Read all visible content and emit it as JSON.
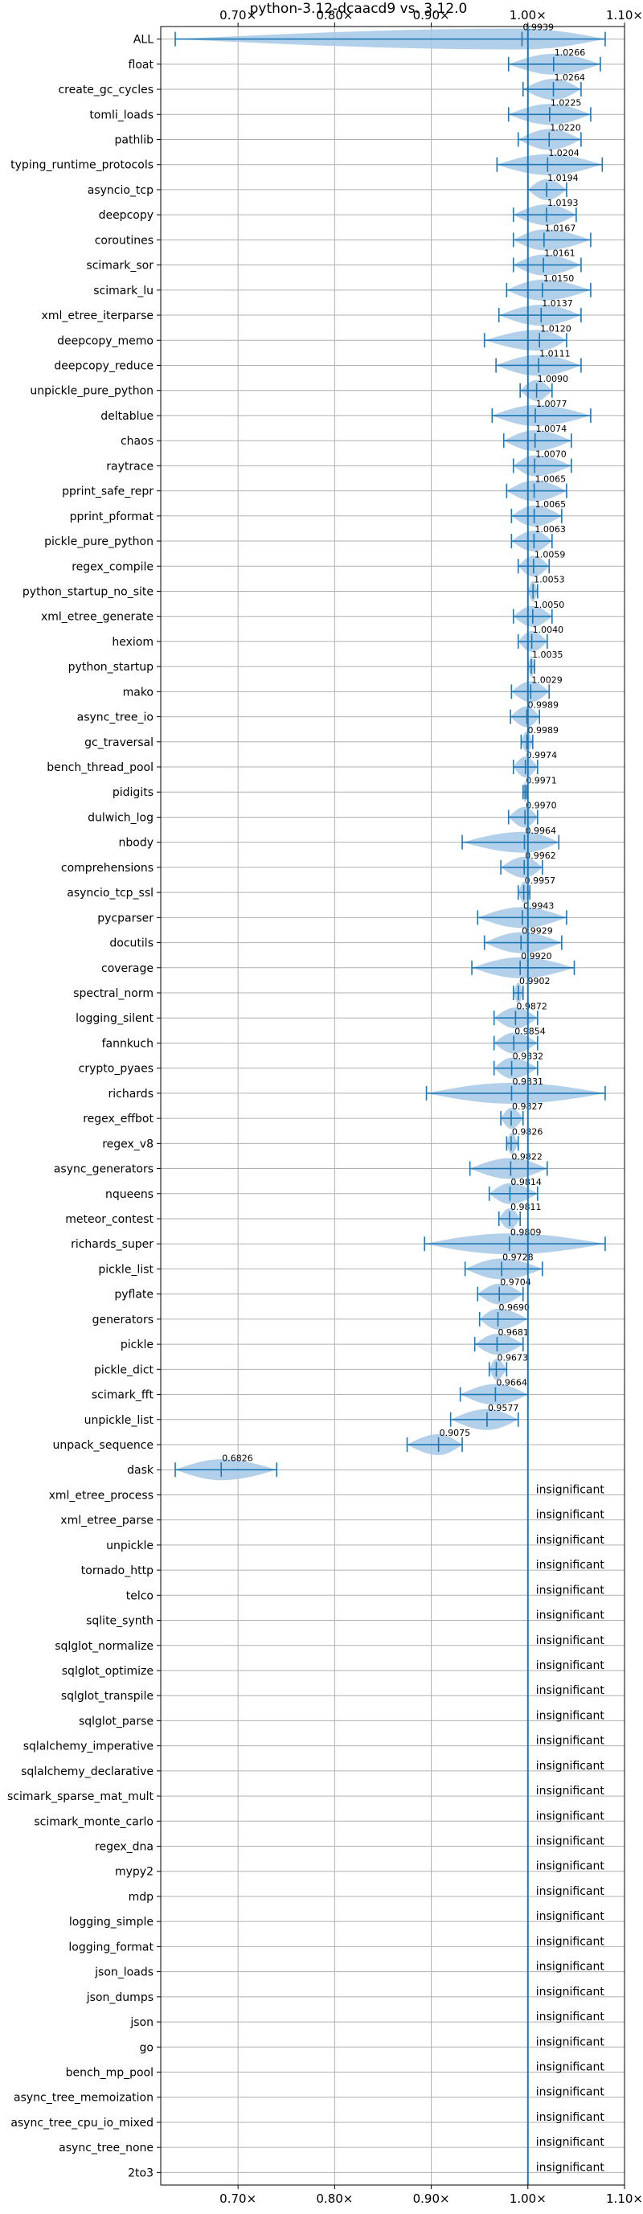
{
  "chart_data": {
    "type": "violin",
    "title": "python-3.12-dcaacd9 vs. 3.12.0",
    "xlim": [
      0.62,
      1.1
    ],
    "xticks": [
      0.7,
      0.8,
      0.9,
      1.0,
      1.1
    ],
    "xtick_labels": [
      "0.70×",
      "0.80×",
      "0.90×",
      "1.00×",
      "1.10×"
    ],
    "reference_line": 1.0,
    "grid": true,
    "colors": {
      "accent": "#1f77b4",
      "violin_fill": "#a6c8e6",
      "grid": "#b0b0b0"
    },
    "insignificant_label": "insignificant",
    "benchmarks": [
      {
        "name": "ALL",
        "mean": 0.9939,
        "min": 0.635,
        "max": 1.08,
        "label": "0.9939"
      },
      {
        "name": "float",
        "mean": 1.0266,
        "min": 0.98,
        "max": 1.075,
        "label": "1.0266"
      },
      {
        "name": "create_gc_cycles",
        "mean": 1.0264,
        "min": 0.995,
        "max": 1.055,
        "label": "1.0264"
      },
      {
        "name": "tomli_loads",
        "mean": 1.0225,
        "min": 0.98,
        "max": 1.065,
        "label": "1.0225"
      },
      {
        "name": "pathlib",
        "mean": 1.022,
        "min": 0.99,
        "max": 1.055,
        "label": "1.0220"
      },
      {
        "name": "typing_runtime_protocols",
        "mean": 1.0204,
        "min": 0.968,
        "max": 1.077,
        "label": "1.0204"
      },
      {
        "name": "asyncio_tcp",
        "mean": 1.0194,
        "min": 1.0,
        "max": 1.04,
        "label": "1.0194"
      },
      {
        "name": "deepcopy",
        "mean": 1.0193,
        "min": 0.985,
        "max": 1.05,
        "label": "1.0193"
      },
      {
        "name": "coroutines",
        "mean": 1.0167,
        "min": 0.985,
        "max": 1.065,
        "label": "1.0167"
      },
      {
        "name": "scimark_sor",
        "mean": 1.0161,
        "min": 0.985,
        "max": 1.055,
        "label": "1.0161"
      },
      {
        "name": "scimark_lu",
        "mean": 1.015,
        "min": 0.978,
        "max": 1.065,
        "label": "1.0150"
      },
      {
        "name": "xml_etree_iterparse",
        "mean": 1.0137,
        "min": 0.97,
        "max": 1.055,
        "label": "1.0137"
      },
      {
        "name": "deepcopy_memo",
        "mean": 1.012,
        "min": 0.955,
        "max": 1.04,
        "label": "1.0120"
      },
      {
        "name": "deepcopy_reduce",
        "mean": 1.0111,
        "min": 0.967,
        "max": 1.055,
        "label": "1.0111"
      },
      {
        "name": "unpickle_pure_python",
        "mean": 1.009,
        "min": 0.992,
        "max": 1.025,
        "label": "1.0090"
      },
      {
        "name": "deltablue",
        "mean": 1.0077,
        "min": 0.963,
        "max": 1.065,
        "label": "1.0077"
      },
      {
        "name": "chaos",
        "mean": 1.0074,
        "min": 0.975,
        "max": 1.045,
        "label": "1.0074"
      },
      {
        "name": "raytrace",
        "mean": 1.007,
        "min": 0.985,
        "max": 1.045,
        "label": "1.0070"
      },
      {
        "name": "pprint_safe_repr",
        "mean": 1.0065,
        "min": 0.978,
        "max": 1.04,
        "label": "1.0065"
      },
      {
        "name": "pprint_pformat",
        "mean": 1.0065,
        "min": 0.983,
        "max": 1.035,
        "label": "1.0065"
      },
      {
        "name": "pickle_pure_python",
        "mean": 1.0063,
        "min": 0.983,
        "max": 1.025,
        "label": "1.0063"
      },
      {
        "name": "regex_compile",
        "mean": 1.0059,
        "min": 0.99,
        "max": 1.022,
        "label": "1.0059"
      },
      {
        "name": "python_startup_no_site",
        "mean": 1.0053,
        "min": 1.0,
        "max": 1.01,
        "label": "1.0053"
      },
      {
        "name": "xml_etree_generate",
        "mean": 1.005,
        "min": 0.985,
        "max": 1.025,
        "label": "1.0050"
      },
      {
        "name": "hexiom",
        "mean": 1.004,
        "min": 0.99,
        "max": 1.02,
        "label": "1.0040"
      },
      {
        "name": "python_startup",
        "mean": 1.0035,
        "min": 1.0,
        "max": 1.007,
        "label": "1.0035"
      },
      {
        "name": "mako",
        "mean": 1.0029,
        "min": 0.983,
        "max": 1.022,
        "label": "1.0029"
      },
      {
        "name": "async_tree_io",
        "mean": 0.9989,
        "min": 0.982,
        "max": 1.012,
        "label": "0.9989"
      },
      {
        "name": "gc_traversal",
        "mean": 0.9989,
        "min": 0.993,
        "max": 1.005,
        "label": "0.9989"
      },
      {
        "name": "bench_thread_pool",
        "mean": 0.9974,
        "min": 0.985,
        "max": 1.01,
        "label": "0.9974"
      },
      {
        "name": "pidigits",
        "mean": 0.9971,
        "min": 0.995,
        "max": 0.999,
        "label": "0.9971"
      },
      {
        "name": "dulwich_log",
        "mean": 0.997,
        "min": 0.98,
        "max": 1.01,
        "label": "0.9970"
      },
      {
        "name": "nbody",
        "mean": 0.9964,
        "min": 0.932,
        "max": 1.032,
        "label": "0.9964"
      },
      {
        "name": "comprehensions",
        "mean": 0.9962,
        "min": 0.972,
        "max": 1.015,
        "label": "0.9962"
      },
      {
        "name": "asyncio_tcp_ssl",
        "mean": 0.9957,
        "min": 0.99,
        "max": 1.002,
        "label": "0.9957"
      },
      {
        "name": "pycparser",
        "mean": 0.9943,
        "min": 0.948,
        "max": 1.04,
        "label": "0.9943"
      },
      {
        "name": "docutils",
        "mean": 0.9929,
        "min": 0.955,
        "max": 1.035,
        "label": "0.9929"
      },
      {
        "name": "coverage",
        "mean": 0.992,
        "min": 0.942,
        "max": 1.048,
        "label": "0.9920"
      },
      {
        "name": "spectral_norm",
        "mean": 0.9902,
        "min": 0.985,
        "max": 0.995,
        "label": "0.9902"
      },
      {
        "name": "logging_silent",
        "mean": 0.9872,
        "min": 0.965,
        "max": 1.01,
        "label": "0.9872"
      },
      {
        "name": "fannkuch",
        "mean": 0.9854,
        "min": 0.965,
        "max": 1.01,
        "label": "0.9854"
      },
      {
        "name": "crypto_pyaes",
        "mean": 0.9832,
        "min": 0.965,
        "max": 1.01,
        "label": "0.9832"
      },
      {
        "name": "richards",
        "mean": 0.9831,
        "min": 0.895,
        "max": 1.08,
        "label": "0.9831"
      },
      {
        "name": "regex_effbot",
        "mean": 0.9827,
        "min": 0.972,
        "max": 0.995,
        "label": "0.9827"
      },
      {
        "name": "regex_v8",
        "mean": 0.9826,
        "min": 0.978,
        "max": 0.99,
        "label": "0.9826"
      },
      {
        "name": "async_generators",
        "mean": 0.9822,
        "min": 0.94,
        "max": 1.02,
        "label": "0.9822"
      },
      {
        "name": "nqueens",
        "mean": 0.9814,
        "min": 0.96,
        "max": 1.01,
        "label": "0.9814"
      },
      {
        "name": "meteor_contest",
        "mean": 0.9811,
        "min": 0.97,
        "max": 0.992,
        "label": "0.9811"
      },
      {
        "name": "richards_super",
        "mean": 0.9809,
        "min": 0.893,
        "max": 1.08,
        "label": "0.9809"
      },
      {
        "name": "pickle_list",
        "mean": 0.9728,
        "min": 0.935,
        "max": 1.015,
        "label": "0.9728"
      },
      {
        "name": "pyflate",
        "mean": 0.9704,
        "min": 0.948,
        "max": 0.995,
        "label": "0.9704"
      },
      {
        "name": "generators",
        "mean": 0.969,
        "min": 0.95,
        "max": 1.0,
        "label": "0.9690"
      },
      {
        "name": "pickle",
        "mean": 0.9681,
        "min": 0.945,
        "max": 0.995,
        "label": "0.9681"
      },
      {
        "name": "pickle_dict",
        "mean": 0.9673,
        "min": 0.96,
        "max": 0.978,
        "label": "0.9673"
      },
      {
        "name": "scimark_fft",
        "mean": 0.9664,
        "min": 0.93,
        "max": 1.0,
        "label": "0.9664"
      },
      {
        "name": "unpickle_list",
        "mean": 0.9577,
        "min": 0.92,
        "max": 0.99,
        "label": "0.9577"
      },
      {
        "name": "unpack_sequence",
        "mean": 0.9075,
        "min": 0.875,
        "max": 0.932,
        "label": "0.9075"
      },
      {
        "name": "dask",
        "mean": 0.6826,
        "min": 0.635,
        "max": 0.74,
        "label": "0.6826"
      },
      {
        "name": "xml_etree_process",
        "insignificant": true
      },
      {
        "name": "xml_etree_parse",
        "insignificant": true
      },
      {
        "name": "unpickle",
        "insignificant": true
      },
      {
        "name": "tornado_http",
        "insignificant": true
      },
      {
        "name": "telco",
        "insignificant": true
      },
      {
        "name": "sqlite_synth",
        "insignificant": true
      },
      {
        "name": "sqlglot_normalize",
        "insignificant": true
      },
      {
        "name": "sqlglot_optimize",
        "insignificant": true
      },
      {
        "name": "sqlglot_transpile",
        "insignificant": true
      },
      {
        "name": "sqlglot_parse",
        "insignificant": true
      },
      {
        "name": "sqlalchemy_imperative",
        "insignificant": true
      },
      {
        "name": "sqlalchemy_declarative",
        "insignificant": true
      },
      {
        "name": "scimark_sparse_mat_mult",
        "insignificant": true
      },
      {
        "name": "scimark_monte_carlo",
        "insignificant": true
      },
      {
        "name": "regex_dna",
        "insignificant": true
      },
      {
        "name": "mypy2",
        "insignificant": true
      },
      {
        "name": "mdp",
        "insignificant": true
      },
      {
        "name": "logging_simple",
        "insignificant": true
      },
      {
        "name": "logging_format",
        "insignificant": true
      },
      {
        "name": "json_loads",
        "insignificant": true
      },
      {
        "name": "json_dumps",
        "insignificant": true
      },
      {
        "name": "json",
        "insignificant": true
      },
      {
        "name": "go",
        "insignificant": true
      },
      {
        "name": "bench_mp_pool",
        "insignificant": true
      },
      {
        "name": "async_tree_memoization",
        "insignificant": true
      },
      {
        "name": "async_tree_cpu_io_mixed",
        "insignificant": true
      },
      {
        "name": "async_tree_none",
        "insignificant": true
      },
      {
        "name": "2to3",
        "insignificant": true
      }
    ]
  }
}
